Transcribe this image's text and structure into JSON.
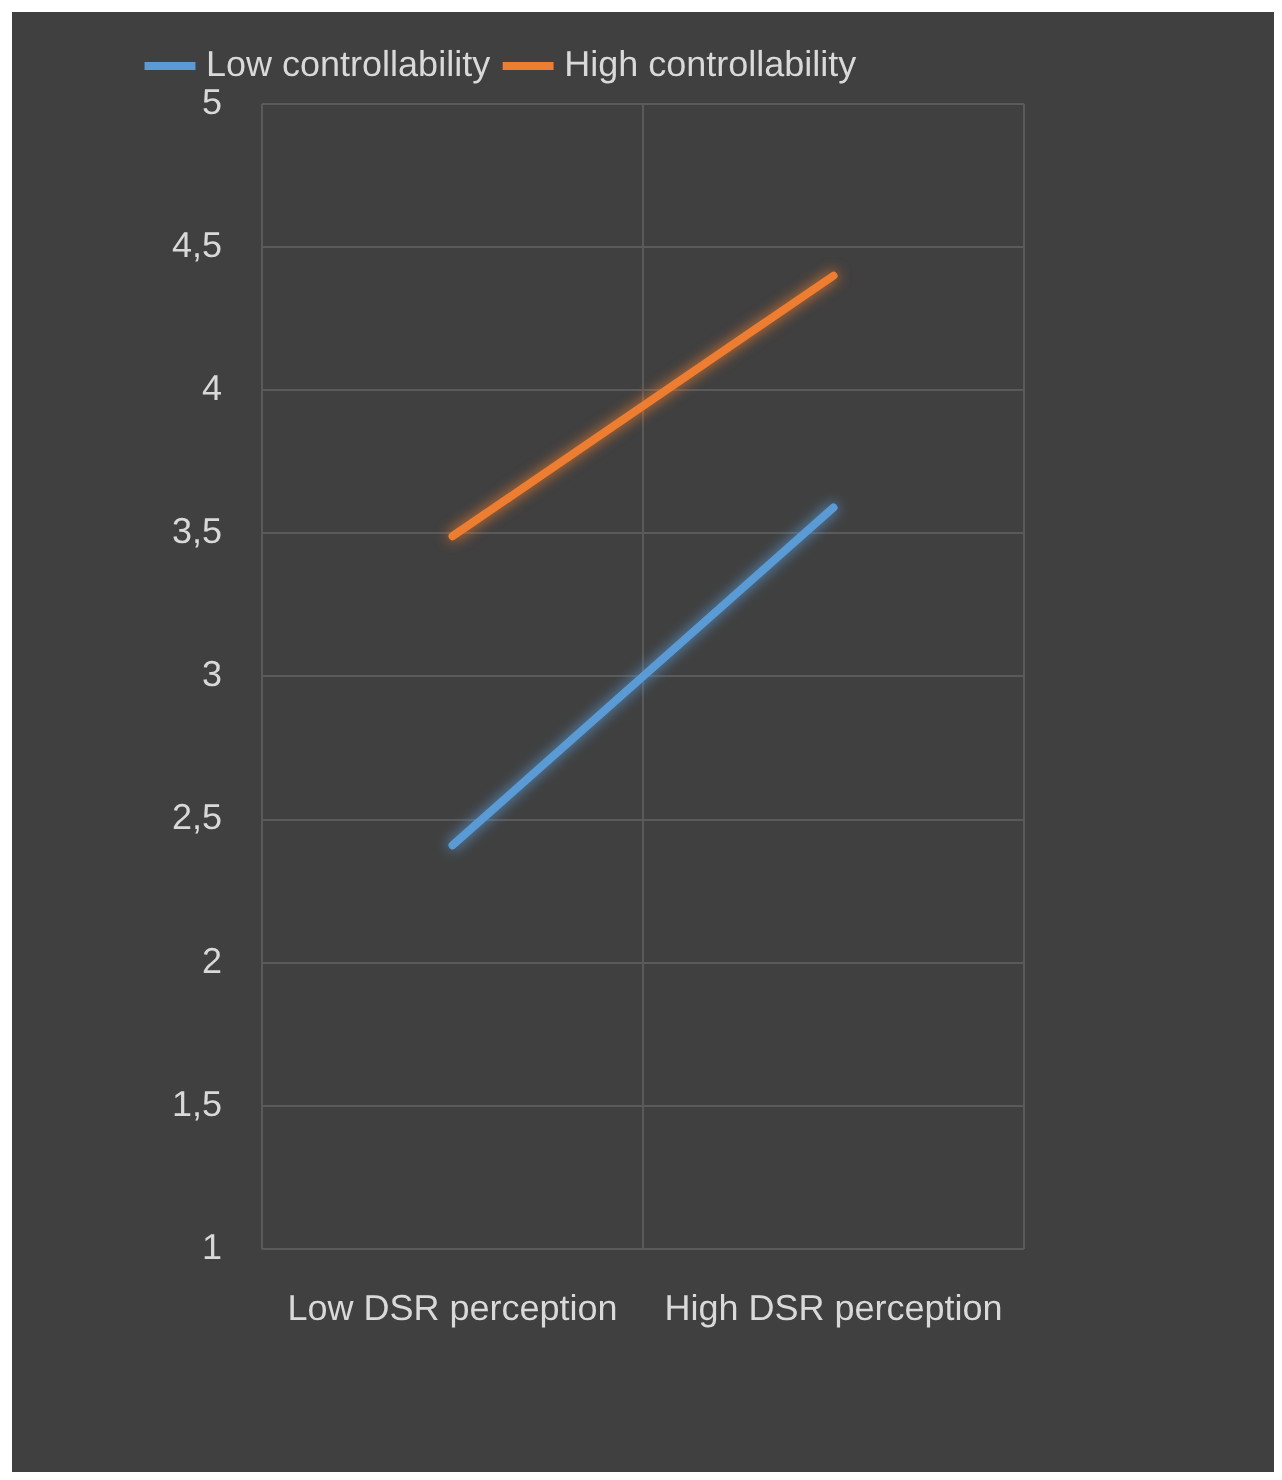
{
  "chart_data": {
    "type": "line",
    "categories": [
      "Low DSR perception",
      "High DSR perception"
    ],
    "series": [
      {
        "name": "Low controllability",
        "color": "#5b9bd5",
        "values": [
          2.41,
          3.59
        ]
      },
      {
        "name": "High controllability",
        "color": "#ed7d31",
        "values": [
          3.49,
          4.4
        ]
      }
    ],
    "ylim": [
      1,
      5
    ],
    "yticks": [
      1,
      {
        "value": 1.5,
        "label": "1,5"
      },
      2,
      {
        "value": 2.5,
        "label": "2,5"
      },
      3,
      {
        "value": 3.5,
        "label": "3,5"
      },
      4,
      {
        "value": 4.5,
        "label": "4,5"
      },
      5
    ],
    "grid": true,
    "legend": "top",
    "marker": "none",
    "line_style": "solid"
  }
}
